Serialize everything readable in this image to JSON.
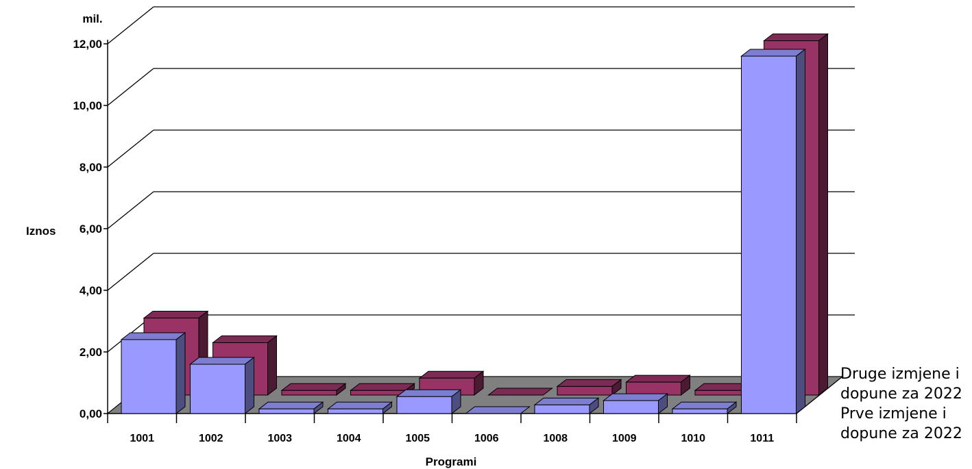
{
  "chart_data": {
    "type": "bar",
    "units": "mil.",
    "ylabel": "Iznos",
    "xlabel": "Programi",
    "ylim": [
      0,
      12
    ],
    "yticks": [
      "0,00",
      "2,00",
      "4,00",
      "6,00",
      "8,00",
      "10,00",
      "12,00"
    ],
    "categories": [
      "1001",
      "1002",
      "1003",
      "1004",
      "1005",
      "1006",
      "1008",
      "1009",
      "1010",
      "1011"
    ],
    "series": [
      {
        "name": "Prve izmjene i dopune za 2022",
        "color": "#9999ff",
        "values": [
          2.4,
          1.6,
          0.15,
          0.15,
          0.55,
          0.0,
          0.28,
          0.42,
          0.15,
          11.6
        ]
      },
      {
        "name": "Druge izmjene i dopune za 2022",
        "color": "#993366",
        "values": [
          2.5,
          1.7,
          0.15,
          0.15,
          0.55,
          0.0,
          0.28,
          0.42,
          0.15,
          11.5
        ]
      }
    ],
    "grid": true,
    "legend": "right"
  }
}
